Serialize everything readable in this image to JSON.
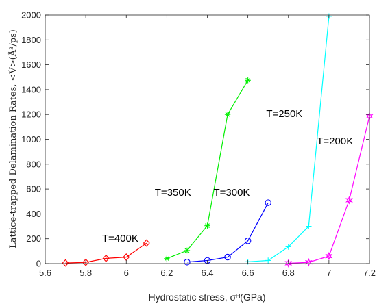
{
  "chart_data": {
    "type": "line",
    "xlabel": "Hydrostatic stress, σᴴ(GPa)",
    "ylabel": "Lattice-trapped Delamination Rates, <V̇>(Å³/ps)",
    "xlim": [
      5.6,
      7.2
    ],
    "ylim": [
      0,
      2000
    ],
    "xticks": [
      "5.6",
      "5.8",
      "6",
      "6.2",
      "6.4",
      "6.6",
      "6.8",
      "7",
      "7.2"
    ],
    "yticks": [
      "0",
      "200",
      "400",
      "600",
      "800",
      "1000",
      "1200",
      "1400",
      "1600",
      "1800",
      "2000"
    ],
    "grid": false,
    "series": [
      {
        "name": "T=400K",
        "color": "#ff0000",
        "marker": "diamond",
        "x": [
          5.7,
          5.8,
          5.9,
          6.0,
          6.1
        ],
        "y": [
          5,
          10,
          42,
          52,
          165
        ]
      },
      {
        "name": "T=350K",
        "color": "#00ee00",
        "marker": "asterisk",
        "x": [
          6.2,
          6.3,
          6.4,
          6.5,
          6.6
        ],
        "y": [
          40,
          105,
          305,
          1200,
          1475
        ]
      },
      {
        "name": "T=300K",
        "color": "#0000ff",
        "marker": "circle",
        "x": [
          6.3,
          6.4,
          6.5,
          6.6,
          6.7
        ],
        "y": [
          12,
          25,
          52,
          183,
          490
        ]
      },
      {
        "name": "T=250K",
        "color": "#00ffff",
        "marker": "plus",
        "x": [
          6.6,
          6.7,
          6.8,
          6.9,
          7.0
        ],
        "y": [
          15,
          25,
          135,
          300,
          1990
        ]
      },
      {
        "name": "T=200K",
        "color": "#ff00ff",
        "marker": "hexagram",
        "x": [
          6.8,
          6.9,
          7.0,
          7.1,
          7.2
        ],
        "y": [
          3,
          10,
          60,
          510,
          1185
        ]
      }
    ],
    "annotations": [
      {
        "text": "T=400K",
        "x": 5.97,
        "y": 175
      },
      {
        "text": "T=350K",
        "x": 6.23,
        "y": 545
      },
      {
        "text": "T=300K",
        "x": 6.52,
        "y": 545
      },
      {
        "text": "T=250K",
        "x": 6.78,
        "y": 1180
      },
      {
        "text": "T=200K",
        "x": 7.03,
        "y": 958
      }
    ]
  }
}
